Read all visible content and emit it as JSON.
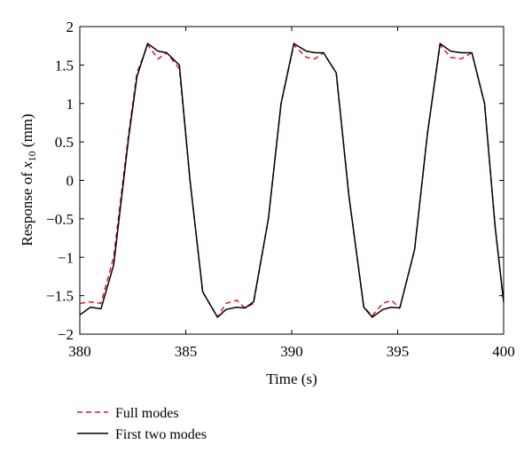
{
  "chart_data": {
    "type": "line",
    "xlabel": "Time (s)",
    "ylabel": {
      "prefix": "Response of ",
      "var": "x",
      "sub": "10",
      "suffix": " (mm)"
    },
    "xlim": [
      380,
      400
    ],
    "ylim": [
      -2,
      2
    ],
    "xticks": [
      "380",
      "385",
      "390",
      "395",
      "400"
    ],
    "yticks": [
      "2",
      "1.5",
      "1",
      "0.5",
      "0",
      "−0.5",
      "−1",
      "−1.5",
      "−2"
    ],
    "grid": false,
    "legend_position": "bottom-left, below axes",
    "period_s": 6.9,
    "series": [
      {
        "name": "Full modes",
        "color": "#e8141e",
        "style": "dashed",
        "x": [
          380.0,
          380.5,
          381.0,
          381.6,
          382.3,
          382.7,
          383.2,
          383.7,
          384.1,
          384.7,
          385.2,
          385.8,
          386.5,
          386.9,
          387.4,
          387.8,
          388.2,
          388.9,
          389.5,
          390.1,
          390.7,
          391.1,
          391.5,
          392.1,
          392.7,
          393.4,
          393.8,
          394.3,
          394.7,
          395.1,
          395.8,
          396.4,
          397.0,
          397.5,
          398.0,
          398.5,
          399.1,
          399.6,
          400.0
        ],
        "y": [
          -1.6,
          -1.58,
          -1.6,
          -1.0,
          0.6,
          1.4,
          1.76,
          1.58,
          1.66,
          1.45,
          0.0,
          -1.45,
          -1.78,
          -1.6,
          -1.56,
          -1.66,
          -1.6,
          -0.5,
          1.0,
          1.76,
          1.6,
          1.58,
          1.66,
          1.4,
          -0.2,
          -1.65,
          -1.76,
          -1.6,
          -1.56,
          -1.66,
          -0.9,
          0.6,
          1.76,
          1.6,
          1.58,
          1.66,
          1.0,
          -0.6,
          -1.6
        ]
      },
      {
        "name": "First two modes",
        "color": "#000000",
        "style": "solid",
        "x": [
          380.0,
          380.5,
          381.0,
          381.6,
          382.3,
          382.7,
          383.2,
          383.7,
          384.1,
          384.7,
          385.2,
          385.8,
          386.5,
          386.9,
          387.4,
          387.8,
          388.2,
          388.9,
          389.5,
          390.1,
          390.7,
          391.1,
          391.5,
          392.1,
          392.7,
          393.4,
          393.8,
          394.3,
          394.7,
          395.1,
          395.8,
          396.4,
          397.0,
          397.5,
          398.0,
          398.5,
          399.1,
          399.6,
          400.0
        ],
        "y": [
          -1.75,
          -1.65,
          -1.67,
          -1.1,
          0.55,
          1.35,
          1.78,
          1.68,
          1.66,
          1.5,
          0.0,
          -1.45,
          -1.78,
          -1.68,
          -1.65,
          -1.66,
          -1.58,
          -0.5,
          1.0,
          1.78,
          1.68,
          1.66,
          1.66,
          1.4,
          -0.2,
          -1.65,
          -1.78,
          -1.68,
          -1.65,
          -1.66,
          -0.9,
          0.6,
          1.78,
          1.68,
          1.66,
          1.66,
          1.0,
          -0.6,
          -1.58
        ]
      }
    ]
  }
}
